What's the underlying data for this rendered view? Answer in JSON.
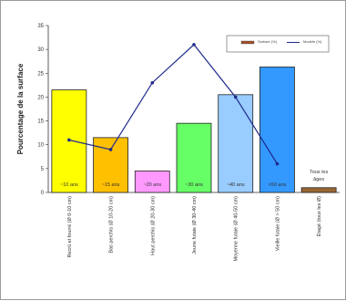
{
  "chart_data": {
    "type": "bar",
    "ylabel": "Pourcentage de la surface",
    "ylim": [
      0,
      35
    ],
    "yticks": [
      0,
      5,
      10,
      15,
      20,
      25,
      30,
      35
    ],
    "grid": false,
    "legend_position": "top-right",
    "categories": [
      "Recrû et fourré (Ø 0-10 cm)",
      "Bas perchis (Ø 10-20 cm)",
      "Haut perchis (Ø 20-30 cm)",
      "Jeune futaie (Ø 30-40 cm)",
      "Moyenne futaie (Ø 40-50 cm)",
      "Vieille futaie (Ø > 50 cm)",
      "Étagé (tous les Ø)"
    ],
    "bar_labels": [
      "~10 ans",
      "~15 ans",
      "~20 ans",
      "~30 ans",
      "~40 ans",
      ">50 ans",
      "Tous les âges"
    ],
    "bar_colors": [
      "#ffff00",
      "#ffc000",
      "#ff99ff",
      "#66ff66",
      "#99ccff",
      "#3399ff",
      "#996633"
    ],
    "series": [
      {
        "name": "Surface (%)",
        "kind": "bar",
        "color": "#a0522d",
        "values": [
          21.5,
          11.5,
          4.5,
          14.5,
          20.5,
          26.3,
          1.0
        ]
      },
      {
        "name": "Modèle (%)",
        "kind": "line",
        "color": "#1f2a8c",
        "values": [
          11,
          9,
          23,
          31,
          20,
          6,
          null
        ]
      }
    ]
  }
}
